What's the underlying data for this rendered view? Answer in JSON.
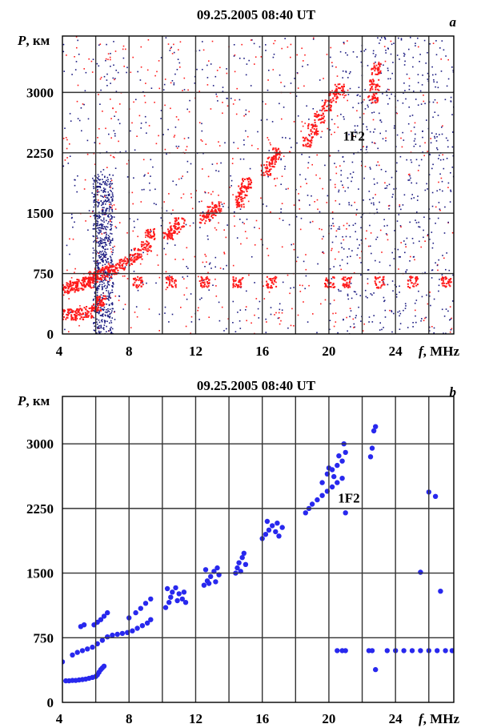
{
  "colors": {
    "red_echo": "#ff1a1a",
    "blue_echo": "#1a1a80",
    "blue_points": "#2828ee",
    "grid": "#333333"
  },
  "chart_data": [
    {
      "type": "scatter",
      "panel": "a",
      "title": "09.25.2005  08:40 UT",
      "xlabel": "f, MHz",
      "ylabel": "P, км",
      "xlim": [
        4,
        27.5
      ],
      "ylim": [
        0,
        3700
      ],
      "x_ticks": [
        4,
        8,
        12,
        16,
        20,
        24
      ],
      "y_ticks": [
        0,
        750,
        1500,
        2250,
        3000
      ],
      "grid": true,
      "annotations": [
        {
          "text": "1F2",
          "x": 21.5,
          "y": 2400
        }
      ],
      "series": [
        {
          "color": "red",
          "description_points": [
            [
              4.0,
              250
            ],
            [
              4.5,
              250
            ],
            [
              5.0,
              260
            ],
            [
              5.5,
              280
            ],
            [
              6.0,
              350
            ],
            [
              6.3,
              420
            ],
            [
              4.2,
              580
            ],
            [
              4.6,
              600
            ],
            [
              5.0,
              620
            ],
            [
              5.4,
              660
            ],
            [
              5.8,
              720
            ],
            [
              6.2,
              750
            ],
            [
              6.6,
              780
            ],
            [
              7.0,
              820
            ],
            [
              7.5,
              870
            ],
            [
              8.0,
              930
            ],
            [
              8.5,
              1000
            ],
            [
              9.0,
              1100
            ],
            [
              9.2,
              1250
            ],
            [
              10.3,
              1250
            ],
            [
              10.7,
              1320
            ],
            [
              11.0,
              1380
            ],
            [
              12.5,
              1450
            ],
            [
              12.9,
              1520
            ],
            [
              13.2,
              1580
            ],
            [
              14.6,
              1650
            ],
            [
              14.8,
              1780
            ],
            [
              15.0,
              1880
            ],
            [
              16.2,
              2050
            ],
            [
              16.5,
              2150
            ],
            [
              16.8,
              2250
            ],
            [
              18.7,
              2400
            ],
            [
              19.0,
              2550
            ],
            [
              19.4,
              2700
            ],
            [
              19.8,
              2850
            ],
            [
              20.2,
              2950
            ],
            [
              20.6,
              3050
            ],
            [
              22.6,
              2950
            ],
            [
              22.7,
              3100
            ],
            [
              22.8,
              3300
            ],
            [
              5.5,
              650
            ],
            [
              8.5,
              650
            ],
            [
              10.5,
              650
            ],
            [
              12.5,
              650
            ],
            [
              14.5,
              650
            ],
            [
              16.5,
              650
            ],
            [
              20.0,
              650
            ],
            [
              21.0,
              650
            ],
            [
              23.0,
              650
            ],
            [
              25.0,
              650
            ],
            [
              27.0,
              650
            ]
          ]
        },
        {
          "color": "blue",
          "description": "dense noise background, strongest at 6-7 MHz column and 20-27 MHz"
        }
      ]
    },
    {
      "type": "scatter",
      "panel": "b",
      "title": "09.25.2005  08:40 UT",
      "xlabel": "f, MHz",
      "ylabel": "P, км",
      "xlim": [
        4,
        27.5
      ],
      "ylim": [
        0,
        3550
      ],
      "x_ticks": [
        4,
        8,
        12,
        16,
        20,
        24
      ],
      "y_ticks": [
        0,
        750,
        1500,
        2250,
        3000
      ],
      "grid": true,
      "annotations": [
        {
          "text": "1F2",
          "x": 21.2,
          "y": 2320
        }
      ],
      "series": [
        {
          "color": "blue",
          "points": [
            [
              4.0,
              470
            ],
            [
              4.2,
              250
            ],
            [
              4.4,
              250
            ],
            [
              4.6,
              255
            ],
            [
              4.8,
              255
            ],
            [
              5.0,
              260
            ],
            [
              5.2,
              265
            ],
            [
              5.4,
              270
            ],
            [
              5.6,
              280
            ],
            [
              5.8,
              290
            ],
            [
              6.0,
              300
            ],
            [
              6.1,
              320
            ],
            [
              6.2,
              350
            ],
            [
              6.3,
              380
            ],
            [
              6.4,
              400
            ],
            [
              6.5,
              420
            ],
            [
              4.6,
              550
            ],
            [
              4.9,
              580
            ],
            [
              5.2,
              600
            ],
            [
              5.5,
              620
            ],
            [
              5.8,
              640
            ],
            [
              6.1,
              680
            ],
            [
              6.4,
              720
            ],
            [
              6.7,
              760
            ],
            [
              5.1,
              880
            ],
            [
              5.3,
              900
            ],
            [
              5.9,
              900
            ],
            [
              6.1,
              930
            ],
            [
              6.3,
              960
            ],
            [
              6.5,
              1000
            ],
            [
              6.7,
              1040
            ],
            [
              7.0,
              780
            ],
            [
              7.3,
              790
            ],
            [
              7.6,
              800
            ],
            [
              7.9,
              810
            ],
            [
              8.2,
              830
            ],
            [
              8.5,
              860
            ],
            [
              8.8,
              890
            ],
            [
              9.1,
              920
            ],
            [
              9.3,
              960
            ],
            [
              8.0,
              980
            ],
            [
              8.4,
              1040
            ],
            [
              8.7,
              1090
            ],
            [
              9.0,
              1150
            ],
            [
              9.3,
              1200
            ],
            [
              10.2,
              1100
            ],
            [
              10.4,
              1160
            ],
            [
              10.5,
              1220
            ],
            [
              10.6,
              1280
            ],
            [
              10.8,
              1330
            ],
            [
              11.0,
              1260
            ],
            [
              11.2,
              1200
            ],
            [
              11.4,
              1160
            ],
            [
              10.3,
              1320
            ],
            [
              10.9,
              1180
            ],
            [
              11.3,
              1280
            ],
            [
              12.5,
              1360
            ],
            [
              12.7,
              1410
            ],
            [
              12.9,
              1460
            ],
            [
              13.1,
              1520
            ],
            [
              13.3,
              1560
            ],
            [
              12.8,
              1380
            ],
            [
              13.2,
              1400
            ],
            [
              13.4,
              1480
            ],
            [
              12.6,
              1540
            ],
            [
              14.4,
              1500
            ],
            [
              14.5,
              1560
            ],
            [
              14.6,
              1620
            ],
            [
              14.8,
              1680
            ],
            [
              14.9,
              1730
            ],
            [
              15.0,
              1600
            ],
            [
              14.7,
              1520
            ],
            [
              16.0,
              1900
            ],
            [
              16.2,
              1950
            ],
            [
              16.4,
              2000
            ],
            [
              16.6,
              2050
            ],
            [
              16.8,
              1980
            ],
            [
              17.0,
              1930
            ],
            [
              17.2,
              2030
            ],
            [
              16.3,
              2100
            ],
            [
              16.9,
              2080
            ],
            [
              18.6,
              2200
            ],
            [
              18.8,
              2250
            ],
            [
              19.0,
              2300
            ],
            [
              19.3,
              2350
            ],
            [
              19.6,
              2400
            ],
            [
              19.9,
              2450
            ],
            [
              20.2,
              2500
            ],
            [
              20.5,
              2550
            ],
            [
              20.8,
              2600
            ],
            [
              19.6,
              2550
            ],
            [
              19.9,
              2650
            ],
            [
              20.2,
              2700
            ],
            [
              20.5,
              2750
            ],
            [
              20.8,
              2800
            ],
            [
              21.0,
              2900
            ],
            [
              20.9,
              3000
            ],
            [
              20.6,
              2860
            ],
            [
              20.3,
              2620
            ],
            [
              20.0,
              2720
            ],
            [
              20.5,
              600
            ],
            [
              20.8,
              600
            ],
            [
              21.0,
              600
            ],
            [
              21.0,
              2200
            ],
            [
              22.4,
              600
            ],
            [
              22.6,
              600
            ],
            [
              22.8,
              380
            ],
            [
              22.5,
              2850
            ],
            [
              22.6,
              2950
            ],
            [
              22.7,
              3150
            ],
            [
              22.8,
              3200
            ],
            [
              23.5,
              600
            ],
            [
              24.0,
              600
            ],
            [
              24.5,
              600
            ],
            [
              25.0,
              600
            ],
            [
              25.5,
              600
            ],
            [
              26.0,
              600
            ],
            [
              26.5,
              600
            ],
            [
              27.0,
              600
            ],
            [
              27.4,
              600
            ],
            [
              25.5,
              1510
            ],
            [
              26.0,
              2440
            ],
            [
              26.4,
              2390
            ],
            [
              26.7,
              1290
            ]
          ]
        }
      ]
    }
  ]
}
